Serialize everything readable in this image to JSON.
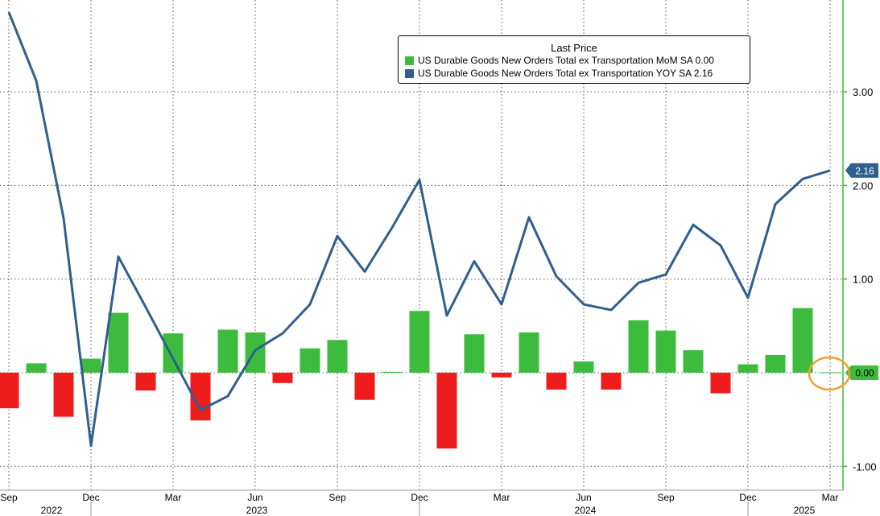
{
  "colors": {
    "mom_up": "#3dbb3d",
    "mom_down": "#ee1c1c",
    "yoy_line": "#2e5f8e",
    "axis": "#3dbb3d",
    "grid": "#555555",
    "highlight_circle": "#f0a030"
  },
  "legend": {
    "title": "Last Price",
    "items": [
      {
        "label": "US Durable Goods New Orders Total ex Transportation MoM SA",
        "value": "0.00",
        "color": "#3dbb3d"
      },
      {
        "label": "US Durable Goods New Orders Total ex Transportation YOY SA",
        "value": "2.16",
        "color": "#2e5f8e"
      }
    ]
  },
  "chart_data": {
    "type": "bar",
    "title": "",
    "xlabel": "",
    "ylabel": "",
    "ylim": [
      -1.15,
      4.0
    ],
    "y_ticks": [
      "3.00",
      "2.00",
      "1.00",
      "0.00",
      "-1.00"
    ],
    "y_tick_values": [
      3,
      2,
      1,
      0,
      -1
    ],
    "x_tick_labels": [
      "Sep",
      "Dec",
      "Mar",
      "Jun",
      "Sep",
      "Dec",
      "Mar",
      "Jun",
      "Sep",
      "Dec",
      "Mar"
    ],
    "x_tick_index": [
      0,
      3,
      6,
      9,
      12,
      15,
      18,
      21,
      24,
      27,
      30
    ],
    "year_labels": [
      {
        "label": "2022",
        "index": 1.5
      },
      {
        "label": "2023",
        "index": 9
      },
      {
        "label": "2024",
        "index": 21
      },
      {
        "label": "2025",
        "index": 29
      }
    ],
    "year_dividers": [
      3,
      15,
      27
    ],
    "grid": true,
    "legend_position": "top-center",
    "categories": [
      "Sep 2022",
      "Oct 2022",
      "Nov 2022",
      "Dec 2022",
      "Jan 2023",
      "Feb 2023",
      "Mar 2023",
      "Apr 2023",
      "May 2023",
      "Jun 2023",
      "Jul 2023",
      "Aug 2023",
      "Sep 2023",
      "Oct 2023",
      "Nov 2023",
      "Dec 2023",
      "Jan 2024",
      "Feb 2024",
      "Mar 2024",
      "Apr 2024",
      "May 2024",
      "Jun 2024",
      "Jul 2024",
      "Aug 2024",
      "Sep 2024",
      "Oct 2024",
      "Nov 2024",
      "Dec 2024",
      "Jan 2025",
      "Feb 2025",
      "Mar 2025"
    ],
    "series": [
      {
        "name": "US Durable Goods New Orders Total ex Transportation MoM SA",
        "type": "bar",
        "values": [
          -0.38,
          0.1,
          -0.47,
          0.15,
          0.64,
          -0.19,
          0.42,
          -0.51,
          0.46,
          0.43,
          -0.11,
          0.26,
          0.35,
          -0.29,
          0.01,
          0.66,
          -0.81,
          0.41,
          -0.05,
          0.43,
          -0.18,
          0.12,
          -0.18,
          0.56,
          0.45,
          0.24,
          -0.22,
          0.09,
          0.19,
          0.69,
          0.0
        ]
      },
      {
        "name": "US Durable Goods New Orders Total ex Transportation YOY SA",
        "type": "line",
        "values": [
          3.85,
          3.12,
          1.65,
          -0.78,
          1.24,
          0.7,
          0.15,
          -0.4,
          -0.25,
          0.24,
          0.42,
          0.73,
          1.46,
          1.08,
          1.55,
          2.06,
          0.61,
          1.19,
          0.73,
          1.66,
          1.03,
          0.73,
          0.67,
          0.96,
          1.05,
          1.58,
          1.36,
          0.8,
          1.8,
          2.07,
          2.16
        ]
      }
    ],
    "last_value_badge": "2.16"
  }
}
